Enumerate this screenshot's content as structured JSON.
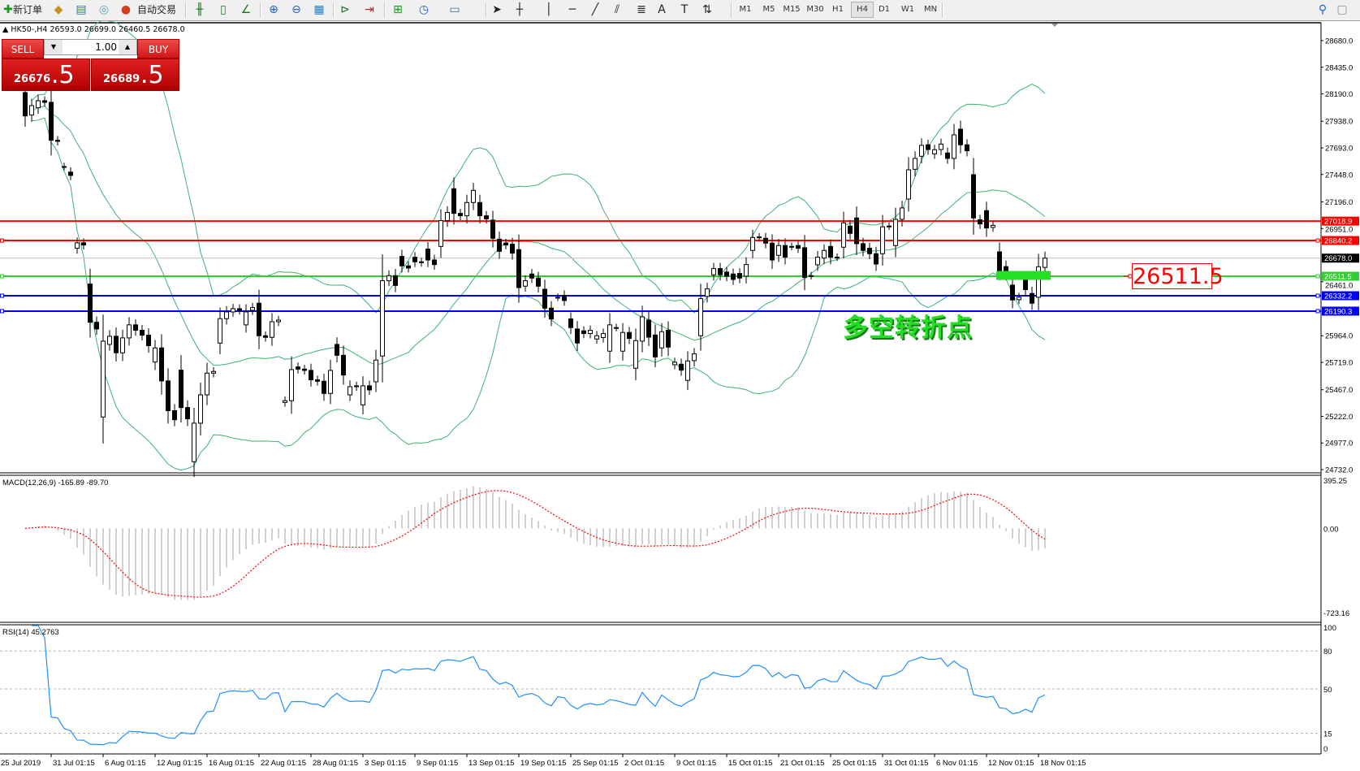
{
  "toolbar": {
    "new_order_label": "新订单",
    "auto_trade_label": "自动交易",
    "icons": [
      "new-order-icon",
      "metaeditor-icon",
      "navigator-icon",
      "signals-icon",
      "auto-trade-icon",
      "bar-chart-icon",
      "candlestick-icon",
      "line-chart-icon",
      "zoom-in-icon",
      "zoom-out-icon",
      "tile-windows-icon",
      "auto-scroll-icon",
      "chart-shift-icon",
      "indicators-icon",
      "periods-icon",
      "templates-icon",
      "cursor-icon",
      "crosshair-icon",
      "vertical-line-icon",
      "horizontal-line-icon",
      "trendline-icon",
      "equidistant-channel-icon",
      "fibonacci-icon",
      "text-icon",
      "text-label-icon",
      "arrows-icon",
      "search-icon",
      "chat-icon"
    ],
    "text_tool": "A",
    "label_tool": "T",
    "timeframes": [
      "M1",
      "M5",
      "M15",
      "M30",
      "H1",
      "H4",
      "D1",
      "W1",
      "MN"
    ],
    "active_timeframe": "H4"
  },
  "symbol_header": "HK50-,H4  26593.0 26699.0 26460.5 26678.0",
  "trade_widget": {
    "sell_label": "SELL",
    "buy_label": "BUY",
    "lot": "1.00",
    "sell_price_main": "26676",
    "sell_price_frac": ".5",
    "buy_price_main": "26689",
    "buy_price_frac": ".5",
    "color": "#d01818"
  },
  "annotations": {
    "price_label": "26511.5",
    "chinese_text": "多空转折点",
    "box": {
      "price_top": 26560,
      "price_bottom": 26478,
      "from_bar": 150,
      "to_bar": 158,
      "color": "#22e022"
    }
  },
  "chart_data": {
    "type": "candlestick",
    "symbol": "HK50-",
    "timeframe": "H4",
    "ylim": [
      24732.0,
      28680.0
    ],
    "price_ticks": [
      "28680.0",
      "28435.0",
      "28190.0",
      "27938.0",
      "27693.0",
      "27448.0",
      "27196.0",
      "26951.0",
      "26461.0",
      "25964.0",
      "25719.0",
      "25467.0",
      "25222.0",
      "24977.0",
      "24732.0"
    ],
    "time_labels": [
      "25 Jul 2019",
      "31 Jul 01:15",
      "6 Aug 01:15",
      "12 Aug 01:15",
      "16 Aug 01:15",
      "22 Aug 01:15",
      "28 Aug 01:15",
      "3 Sep 01:15",
      "9 Sep 01:15",
      "13 Sep 01:15",
      "19 Sep 01:15",
      "25 Sep 01:15",
      "2 Oct 01:15",
      "9 Oct 01:15",
      "15 Oct 01:15",
      "21 Oct 01:15",
      "25 Oct 01:15",
      "31 Oct 01:15",
      "6 Nov 01:15",
      "12 Nov 01:15",
      "18 Nov 01:15"
    ],
    "open": [
      28202,
      27995,
      28062,
      28127,
      28112,
      27763,
      27521,
      27470,
      26769,
      26819,
      26440,
      26088,
      25216,
      25884,
      25959,
      25807,
      25944,
      26064,
      26014,
      25969,
      25722,
      25852,
      25548,
      25274,
      25647,
      25303,
      24805,
      25159,
      25420,
      25620,
      25896,
      26121,
      26183,
      26213,
      26064,
      26198,
      26263,
      25964,
      25949,
      26093,
      25350,
      25366,
      25677,
      25657,
      25645,
      25558,
      25545,
      25433,
      25884,
      25784,
      25420,
      25495,
      25328,
      25503,
      25540,
      25777,
      26470,
      26517,
      26694,
      26607,
      26686,
      26644,
      26761,
      26661,
      26786,
      27023,
      27317,
      27090,
      27068,
      27190,
      27190,
      27068,
      27028,
      26853,
      26816,
      26806,
      26756,
      26420,
      26532,
      26495,
      26392,
      26218,
      26318,
      26333,
      26119,
      26026,
      26009,
      25984,
      25934,
      25947,
      25822,
      26039,
      25822,
      25994,
      25665,
      25914,
      26108,
      25971,
      25852,
      26014,
      25697,
      25702,
      25553,
      25735,
      25964,
      26326,
      26525,
      26582,
      26550,
      26532,
      26537,
      26512,
      26749,
      26873,
      26861,
      26816,
      26704,
      26794,
      26786,
      26794,
      26774,
      26517,
      26617,
      26679,
      26786,
      26687,
      26779,
      26973,
      27048,
      26811,
      26769,
      26719,
      26719,
      26973,
      26794,
      27035,
      27222,
      27496,
      27616,
      27721,
      27638,
      27678,
      27646,
      27596,
      27865,
      27721,
      27446,
      27031,
      27115,
      26961,
      26736,
      26600,
      26430,
      26296,
      26475,
      26353,
      26318,
      26593
    ],
    "close": [
      27987,
      28082,
      28127,
      28112,
      27763,
      27753,
      27521,
      27439,
      26819,
      26799,
      26088,
      26026,
      25914,
      25959,
      25807,
      25944,
      26064,
      26014,
      25969,
      25872,
      25852,
      25548,
      25274,
      25191,
      25303,
      25199,
      25159,
      25420,
      25620,
      25635,
      26121,
      26183,
      26213,
      26198,
      26183,
      26223,
      25964,
      25949,
      26093,
      26108,
      25366,
      25652,
      25657,
      25645,
      25558,
      25545,
      25433,
      25645,
      25784,
      25602,
      25495,
      25503,
      25503,
      25465,
      25740,
      26470,
      26517,
      26427,
      26607,
      26587,
      26644,
      26637,
      26661,
      26619,
      27023,
      27098,
      27090,
      27068,
      27190,
      27302,
      27068,
      27040,
      26861,
      26741,
      26799,
      26724,
      26407,
      26470,
      26495,
      26420,
      26218,
      26118,
      26318,
      26288,
      26039,
      25897,
      25984,
      26014,
      25964,
      25984,
      26064,
      26039,
      25994,
      25939,
      25919,
      26138,
      25951,
      25769,
      26001,
      25859,
      25720,
      25647,
      25732,
      25797,
      26305,
      26395,
      26582,
      26525,
      26512,
      26482,
      26495,
      26619,
      26868,
      26873,
      26816,
      26661,
      26794,
      26687,
      26786,
      26769,
      26500,
      26517,
      26687,
      26749,
      26687,
      26687,
      27003,
      26906,
      26811,
      26749,
      26719,
      26624,
      26966,
      26973,
      27035,
      27140,
      27491,
      27596,
      27716,
      27678,
      27676,
      27728,
      27596,
      27813,
      27721,
      27666,
      27048,
      26993,
      26956,
      26980,
      26562,
      26530,
      26293,
      26318,
      26388,
      26263,
      26599,
      26678
    ],
    "levels": [
      {
        "price": 27018.9,
        "label": "27018.9",
        "color": "#ff0000"
      },
      {
        "price": 26840.2,
        "label": "26840.2",
        "color": "#ff0000"
      },
      {
        "price": 26678.0,
        "label": "26678.0",
        "color": "#c0c0c0",
        "label_bg": "#000000"
      },
      {
        "price": 26511.5,
        "label": "26511.5",
        "color": "#32cd32"
      },
      {
        "price": 26332.2,
        "label": "26332.2",
        "color": "#0000ff"
      },
      {
        "price": 26190.3,
        "label": "26190.3",
        "color": "#0000ff"
      }
    ],
    "bollinger": {
      "period": 20,
      "deviation": 2,
      "color": "#3cb371"
    },
    "macd": {
      "title": "MACD(12,26,9) -165.89 -89.70",
      "ylim": [
        -723.16,
        395.25
      ],
      "ticks": [
        "395.25",
        "0.00",
        "-723.16"
      ],
      "hist_color": "#c0c0c0",
      "signal_color": "#ff0000"
    },
    "rsi": {
      "title": "RSI(14) 45.2763",
      "ylim": [
        0,
        100
      ],
      "levels": [
        80,
        50,
        15
      ],
      "ticks": [
        "100",
        "80",
        "50",
        "15",
        "0"
      ],
      "color": "#1e90ff"
    }
  }
}
